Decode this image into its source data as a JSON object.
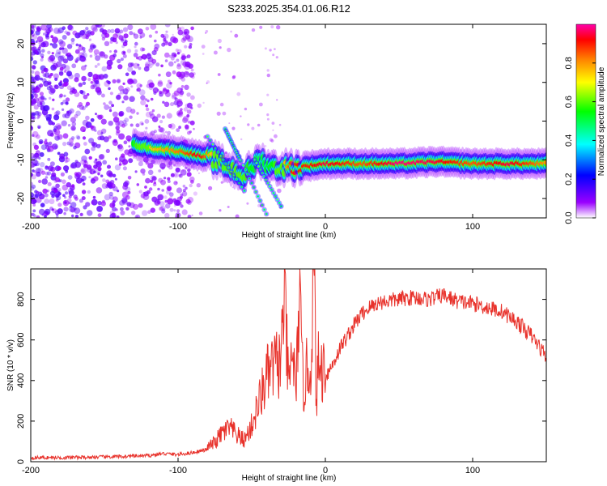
{
  "title": "S233.2025.354.01.06.R12",
  "chart_data": [
    {
      "type": "heatmap",
      "xlabel": "Height of straight line (km)",
      "ylabel": "Frequency (Hz)",
      "xlim": [
        -200,
        150
      ],
      "ylim": [
        -25,
        25
      ],
      "xticks": [
        -200,
        -100,
        0,
        100
      ],
      "yticks": [
        -20,
        -10,
        0,
        10,
        20
      ],
      "colorbar": {
        "label": "Normalized spectral amplitude",
        "range": [
          0,
          1
        ],
        "ticks": [
          0.0,
          0.2,
          0.4,
          0.6,
          0.8
        ],
        "tick_labels": [
          "0.0",
          "0.2",
          "0.4",
          "0.6",
          "0.8"
        ],
        "colors": [
          "#ffffff",
          "#9a00ff",
          "#0000ff",
          "#00ffff",
          "#00ff00",
          "#ffff00",
          "#ff8000",
          "#ff0000",
          "#ff00aa"
        ]
      },
      "ridge": [
        {
          "x": -130,
          "y": -6,
          "a": 0.55
        },
        {
          "x": -118,
          "y": -7,
          "a": 0.75
        },
        {
          "x": -105,
          "y": -7.5,
          "a": 0.8
        },
        {
          "x": -95,
          "y": -8,
          "a": 0.85
        },
        {
          "x": -85,
          "y": -9,
          "a": 0.95
        },
        {
          "x": -75,
          "y": -10,
          "a": 0.7
        },
        {
          "x": -65,
          "y": -12,
          "a": 0.75
        },
        {
          "x": -55,
          "y": -14,
          "a": 0.6
        },
        {
          "x": -45,
          "y": -10,
          "a": 0.5
        },
        {
          "x": -35,
          "y": -12,
          "a": 0.55
        },
        {
          "x": -22,
          "y": -12,
          "a": 0.9
        },
        {
          "x": -10,
          "y": -11.5,
          "a": 0.9
        },
        {
          "x": 0,
          "y": -11,
          "a": 0.95
        },
        {
          "x": 25,
          "y": -11,
          "a": 0.85
        },
        {
          "x": 50,
          "y": -11,
          "a": 0.98
        },
        {
          "x": 75,
          "y": -10.5,
          "a": 0.95
        },
        {
          "x": 100,
          "y": -11,
          "a": 0.85
        },
        {
          "x": 125,
          "y": -11,
          "a": 0.95
        },
        {
          "x": 150,
          "y": -11,
          "a": 0.8
        }
      ]
    },
    {
      "type": "line",
      "xlabel": "Height of straight line (km)",
      "ylabel": "SNR (10 * v/v)",
      "xlim": [
        -200,
        150
      ],
      "ylim": [
        0,
        950
      ],
      "xticks": [
        -200,
        -100,
        0,
        100
      ],
      "yticks": [
        0,
        200,
        400,
        600,
        800
      ],
      "color": "#e8312a",
      "series": [
        {
          "x": [
            -200,
            -180,
            -160,
            -140,
            -120,
            -110,
            -100,
            -90,
            -80,
            -75,
            -70,
            -65,
            -60,
            -55,
            -50,
            -45,
            -40,
            -35,
            -30,
            -28,
            -25,
            -22,
            -20,
            -18,
            -15,
            -12,
            -10,
            -8,
            -6,
            -5,
            -2,
            0,
            5,
            10,
            15,
            20,
            25,
            30,
            35,
            40,
            50,
            60,
            70,
            80,
            90,
            100,
            110,
            120,
            130,
            140,
            150
          ],
          "y": [
            20,
            20,
            22,
            25,
            30,
            40,
            35,
            45,
            60,
            80,
            120,
            140,
            110,
            90,
            150,
            250,
            350,
            400,
            420,
            740,
            300,
            480,
            250,
            700,
            300,
            400,
            350,
            900,
            220,
            400,
            380,
            420,
            480,
            560,
            620,
            680,
            730,
            760,
            780,
            790,
            800,
            810,
            800,
            820,
            790,
            780,
            760,
            740,
            690,
            620,
            520
          ]
        }
      ]
    }
  ]
}
